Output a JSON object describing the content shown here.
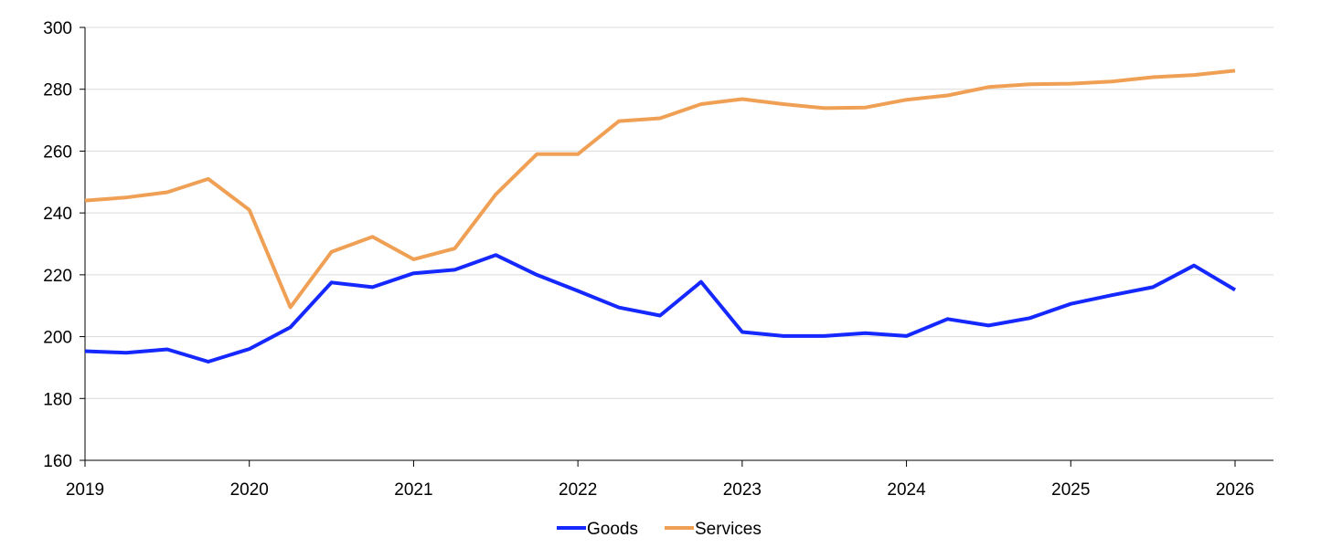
{
  "chart_data": {
    "type": "line",
    "title": "",
    "xlabel": "",
    "ylabel": "",
    "xlim": [
      2019,
      2026.1
    ],
    "ylim": [
      160,
      300
    ],
    "x_ticks": [
      2019,
      2020,
      2021,
      2022,
      2023,
      2024,
      2025,
      2026
    ],
    "x_tick_labels": [
      "2019",
      "2020",
      "2021",
      "2022",
      "2023",
      "2024",
      "2025",
      "2026"
    ],
    "y_ticks": [
      160,
      180,
      200,
      220,
      240,
      260,
      280,
      300
    ],
    "y_tick_labels": [
      "160",
      "180",
      "200",
      "220",
      "240",
      "260",
      "280",
      "300"
    ],
    "grid": "horizontal",
    "legend_position": "bottom",
    "x": [
      2019.0,
      2019.25,
      2019.5,
      2019.75,
      2020.0,
      2020.25,
      2020.5,
      2020.75,
      2021.0,
      2021.25,
      2021.5,
      2021.75,
      2022.0,
      2022.25,
      2022.5,
      2022.75,
      2023.0,
      2023.25,
      2023.5,
      2023.75,
      2024.0,
      2024.25,
      2024.5,
      2024.75,
      2025.0,
      2025.25,
      2025.5,
      2025.75,
      2026.0
    ],
    "series": [
      {
        "name": "Goods",
        "color": "#1428FF",
        "values": [
          195.3,
          194.8,
          195.9,
          191.9,
          196.0,
          203.0,
          217.5,
          216.0,
          220.5,
          221.6,
          226.4,
          220.0,
          214.8,
          209.4,
          206.8,
          217.7,
          201.5,
          200.2,
          200.2,
          201.1,
          200.2,
          205.7,
          203.6,
          206.0,
          210.6,
          213.4,
          216.0,
          223.0,
          215.1
        ]
      },
      {
        "name": "Services",
        "color": "#F0A055",
        "values": [
          244.0,
          245.0,
          246.7,
          251.0,
          241.0,
          209.5,
          227.4,
          232.3,
          225.0,
          228.5,
          246.0,
          259.0,
          259.0,
          269.7,
          270.6,
          275.2,
          276.8,
          275.2,
          273.9,
          274.1,
          276.6,
          278.0,
          280.7,
          281.6,
          281.8,
          282.5,
          283.9,
          284.6,
          286.0
        ]
      }
    ]
  }
}
